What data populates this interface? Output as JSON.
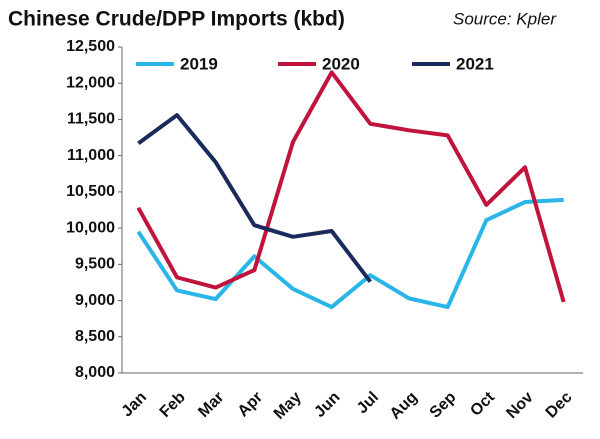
{
  "chart_data": {
    "type": "line",
    "title": "Chinese Crude/DPP Imports (kbd)",
    "source": "Source: Kpler",
    "categories": [
      "Jan",
      "Feb",
      "Mar",
      "Apr",
      "May",
      "Jun",
      "Jul",
      "Aug",
      "Sep",
      "Oct",
      "Nov",
      "Dec"
    ],
    "series": [
      {
        "name": "2019",
        "color": "#29b5e8",
        "values": [
          9950,
          9140,
          9020,
          9610,
          9160,
          8910,
          9350,
          9030,
          8910,
          10110,
          10360,
          10390
        ]
      },
      {
        "name": "2020",
        "color": "#c0143c",
        "values": [
          10280,
          9320,
          9180,
          9420,
          11190,
          12150,
          11440,
          11350,
          11280,
          10320,
          10840,
          8980
        ]
      },
      {
        "name": "2021",
        "color": "#1b2a5c",
        "values": [
          11170,
          11560,
          10910,
          10040,
          9880,
          9960,
          9260,
          null,
          null,
          null,
          null,
          null
        ]
      }
    ],
    "ylim": [
      8000,
      12500
    ],
    "yticks": [
      {
        "value": 8000,
        "label": "8,000"
      },
      {
        "value": 8500,
        "label": "8,500"
      },
      {
        "value": 9000,
        "label": "9,000"
      },
      {
        "value": 9500,
        "label": "9,500"
      },
      {
        "value": 10000,
        "label": "10,000"
      },
      {
        "value": 10500,
        "label": "10,500"
      },
      {
        "value": 11000,
        "label": "11,000"
      },
      {
        "value": 11500,
        "label": "11,500"
      },
      {
        "value": 12000,
        "label": "12,000"
      },
      {
        "value": 12500,
        "label": "12,500"
      }
    ],
    "grid": false,
    "legend": "top"
  }
}
